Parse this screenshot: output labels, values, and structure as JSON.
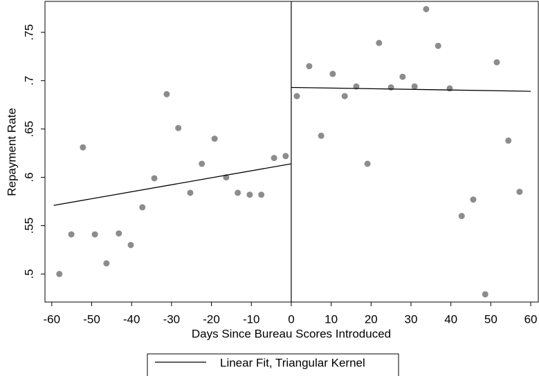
{
  "chart_data": {
    "type": "scatter",
    "xlabel": "Days Since Bureau Scores Introduced",
    "ylabel": "Repayment Rate",
    "xlim": [
      -61.7,
      61.9
    ],
    "ylim": [
      0.471,
      0.782
    ],
    "xticks": [
      -60,
      -50,
      -40,
      -30,
      -20,
      -10,
      0,
      10,
      20,
      30,
      40,
      50,
      60
    ],
    "yticks": [
      {
        "value": 0.5,
        "label": ".5"
      },
      {
        "value": 0.55,
        "label": ".55"
      },
      {
        "value": 0.6,
        "label": ".6"
      },
      {
        "value": 0.65,
        "label": ".65"
      },
      {
        "value": 0.7,
        "label": ".7"
      },
      {
        "value": 0.75,
        "label": ".75"
      }
    ],
    "cutoff": 0,
    "point_color": "#8c8c8c",
    "x": [
      -58.1,
      -55.1,
      -52.2,
      -49.2,
      -46.3,
      -43.2,
      -40.2,
      -37.3,
      -34.3,
      -31.2,
      -28.3,
      -25.3,
      -22.4,
      -19.2,
      -16.3,
      -13.4,
      -10.4,
      -7.5,
      -4.3,
      -1.4,
      1.4,
      4.5,
      7.5,
      10.4,
      13.4,
      16.3,
      19.1,
      22.0,
      25.0,
      27.9,
      30.9,
      33.8,
      36.8,
      39.7,
      42.7,
      45.6,
      48.6,
      51.5,
      54.4,
      57.2
    ],
    "values": [
      0.5,
      0.541,
      0.631,
      0.541,
      0.511,
      0.542,
      0.53,
      0.569,
      0.599,
      0.686,
      0.651,
      0.584,
      0.614,
      0.64,
      0.6,
      0.584,
      0.582,
      0.582,
      0.62,
      0.622,
      0.684,
      0.715,
      0.643,
      0.707,
      0.684,
      0.694,
      0.614,
      0.739,
      0.693,
      0.704,
      0.694,
      0.774,
      0.736,
      0.692,
      0.56,
      0.577,
      0.479,
      0.719,
      0.638,
      0.585
    ],
    "series": [
      {
        "name": "Linear Fit, Triangular Kernel",
        "color": "#000000",
        "pieces": [
          {
            "x": [
              -59.5,
              0
            ],
            "values": [
              0.571,
              0.614
            ]
          },
          {
            "x": [
              0,
              60
            ],
            "values": [
              0.693,
              0.689
            ]
          }
        ]
      }
    ]
  }
}
